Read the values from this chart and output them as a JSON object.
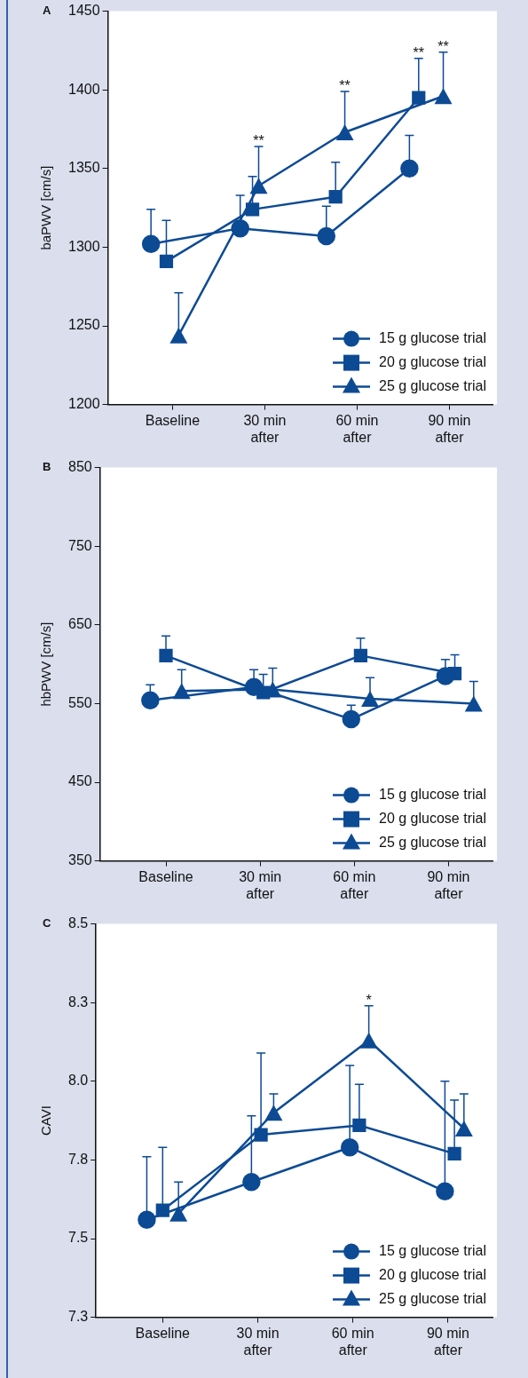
{
  "chart_data": [
    {
      "type": "line",
      "title": "A",
      "ylabel": "baPWV [cm/s]",
      "xlim": [
        -21,
        104
      ],
      "xticks": [
        {
          "value": 0,
          "label": "Baseline"
        },
        {
          "value": 30,
          "label": "30 min after"
        },
        {
          "value": 60,
          "label": "60 min after"
        },
        {
          "value": 90,
          "label": "90 min after"
        }
      ],
      "ylim": [
        1200,
        1450
      ],
      "yticks": [
        1200,
        1250,
        1300,
        1350,
        1400,
        1450
      ],
      "grid": false,
      "legend": "bottom right",
      "line_style": "solid",
      "series": [
        {
          "name": "15 g glucose trial",
          "color": "#0d4a94",
          "marker": "circle",
          "x": [
            -7,
            22,
            50,
            77
          ],
          "values": [
            1302,
            1312,
            1307,
            1350
          ],
          "errors": [
            [
              1302,
              1324
            ],
            [
              1312,
              1333
            ],
            [
              1307,
              1326
            ],
            [
              1350,
              1371
            ]
          ]
        },
        {
          "name": "20 g glucose trial",
          "color": "#0d4a94",
          "marker": "square",
          "x": [
            -2,
            26,
            53,
            80
          ],
          "values": [
            1291,
            1324,
            1332,
            1395
          ],
          "errors": [
            [
              1291,
              1317
            ],
            [
              1324,
              1345
            ],
            [
              1332,
              1354
            ],
            [
              1395,
              1420
            ]
          ]
        },
        {
          "name": "25 g glucose trial",
          "color": "#0d4a94",
          "marker": "triangle",
          "x": [
            2,
            28,
            56,
            88
          ],
          "values": [
            1244,
            1339,
            1373,
            1396
          ],
          "errors": [
            [
              1244,
              1271
            ],
            [
              1339,
              1364
            ],
            [
              1373,
              1399
            ],
            [
              1396,
              1424
            ]
          ]
        }
      ],
      "annotations": [
        {
          "text": "**",
          "x": 28,
          "y": 1364
        },
        {
          "text": "**",
          "x": 56,
          "y": 1399
        },
        {
          "text": "**",
          "x": 80,
          "y": 1420
        },
        {
          "text": "**",
          "x": 88,
          "y": 1424
        }
      ]
    },
    {
      "type": "line",
      "title": "B",
      "ylabel": "hbPWV [cm/s]",
      "xlim": [
        -21,
        104
      ],
      "xticks": [
        {
          "value": 0,
          "label": "Baseline"
        },
        {
          "value": 30,
          "label": "30 min after"
        },
        {
          "value": 60,
          "label": "60 min after"
        },
        {
          "value": 90,
          "label": "90 min after"
        }
      ],
      "ylim": [
        350,
        850
      ],
      "yticks": [
        350,
        450,
        550,
        650,
        750,
        850
      ],
      "grid": false,
      "legend": "bottom right",
      "line_style": "solid",
      "series": [
        {
          "name": "15 g glucose trial",
          "color": "#0d4a94",
          "marker": "circle",
          "x": [
            -5,
            28,
            59,
            89
          ],
          "values": [
            554,
            571,
            530,
            585
          ],
          "errors": [
            [
              554,
              574
            ],
            [
              571,
              593
            ],
            [
              530,
              548
            ],
            [
              585,
              606
            ]
          ]
        },
        {
          "name": "20 g glucose trial",
          "color": "#0d4a94",
          "marker": "square",
          "x": [
            0,
            31,
            62,
            92
          ],
          "values": [
            611,
            564,
            611,
            588
          ],
          "errors": [
            [
              611,
              636
            ],
            [
              564,
              587
            ],
            [
              611,
              633
            ],
            [
              588,
              612
            ]
          ]
        },
        {
          "name": "25 g glucose trial",
          "color": "#0d4a94",
          "marker": "triangle",
          "x": [
            5,
            34,
            65,
            98
          ],
          "values": [
            566,
            568,
            556,
            550
          ],
          "errors": [
            [
              566,
              593
            ],
            [
              568,
              595
            ],
            [
              556,
              583
            ],
            [
              550,
              578
            ]
          ]
        }
      ]
    },
    {
      "type": "line",
      "title": "C",
      "ylabel": "CAVI",
      "xlim": [
        -21,
        104
      ],
      "xticks": [
        {
          "value": 0,
          "label": "Baseline"
        },
        {
          "value": 30,
          "label": "30 min after"
        },
        {
          "value": 60,
          "label": "60 min after"
        },
        {
          "value": 90,
          "label": "90 min after"
        }
      ],
      "ylim": [
        7.25,
        8.5
      ],
      "yticks": [
        {
          "value": 7.25,
          "label": "7.3"
        },
        {
          "value": 7.5,
          "label": "7.5"
        },
        {
          "value": 7.75,
          "label": "7.8"
        },
        {
          "value": 8.0,
          "label": "8.0"
        },
        {
          "value": 8.25,
          "label": "8.3"
        },
        {
          "value": 8.5,
          "label": "8.5"
        }
      ],
      "grid": false,
      "legend": "bottom right",
      "line_style": "solid",
      "series": [
        {
          "name": "15 g glucose trial",
          "color": "#0d4a94",
          "marker": "circle",
          "x": [
            -5,
            28,
            59,
            89
          ],
          "values": [
            7.56,
            7.68,
            7.79,
            7.65
          ],
          "errors": [
            [
              7.56,
              7.76
            ],
            [
              7.68,
              7.89
            ],
            [
              7.79,
              8.05
            ],
            [
              7.65,
              8.0
            ]
          ]
        },
        {
          "name": "20 g glucose trial",
          "color": "#0d4a94",
          "marker": "square",
          "x": [
            0,
            31,
            62,
            92
          ],
          "values": [
            7.59,
            7.83,
            7.86,
            7.77
          ],
          "errors": [
            [
              7.59,
              7.79
            ],
            [
              7.83,
              8.09
            ],
            [
              7.86,
              7.99
            ],
            [
              7.77,
              7.94
            ]
          ]
        },
        {
          "name": "25 g glucose trial",
          "color": "#0d4a94",
          "marker": "triangle",
          "x": [
            5,
            35,
            65,
            95
          ],
          "values": [
            7.58,
            7.9,
            8.13,
            7.85
          ],
          "errors": [
            [
              7.58,
              7.68
            ],
            [
              7.9,
              7.96
            ],
            [
              8.13,
              8.24
            ],
            [
              7.85,
              7.96
            ]
          ]
        }
      ],
      "annotations": [
        {
          "text": "*",
          "x": 65,
          "y": 8.24
        }
      ]
    }
  ]
}
